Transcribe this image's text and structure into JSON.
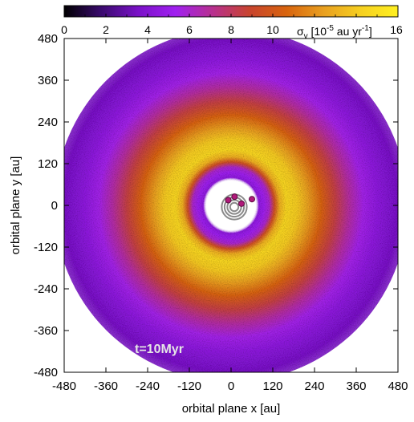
{
  "chart_data": {
    "type": "heatmap",
    "title": "",
    "xlabel": "orbital plane x [au]",
    "ylabel": "orbital plane y [au]",
    "xlim": [
      -480,
      480
    ],
    "ylim": [
      -480,
      480
    ],
    "x_ticks": [
      "-480",
      "-360",
      "-240",
      "-120",
      "0",
      "120",
      "240",
      "360",
      "480"
    ],
    "y_ticks": [
      "480",
      "360",
      "240",
      "120",
      "0",
      "-120",
      "-240",
      "-360",
      "-480"
    ],
    "colorbar": {
      "label_main": "σ",
      "label_sub": "v",
      "label_unit_pre": " [10",
      "label_exp1": "-5",
      "label_mid": " au yr",
      "label_exp2": "-1",
      "label_post": "]",
      "range": [
        0,
        16
      ],
      "ticks": [
        "0",
        "2",
        "4",
        "6",
        "8",
        "10",
        "12",
        "14",
        "16"
      ],
      "colors": [
        "#000000",
        "#3a0a6e",
        "#7a11c8",
        "#a020f0",
        "#b7308f",
        "#c8442e",
        "#d8640e",
        "#e9a020",
        "#f6d020",
        "#fff020"
      ]
    },
    "annotation": "t=10Myr",
    "background_color": "#ffffff",
    "profile": {
      "description_free": true,
      "radius_au": [
        0,
        70,
        80,
        95,
        110,
        125,
        140,
        160,
        190,
        220,
        260,
        300,
        340,
        380,
        420,
        460,
        480
      ],
      "sigma_v": [
        0,
        0,
        4.5,
        5.2,
        6.0,
        9.5,
        13.0,
        14.5,
        14.0,
        12.5,
        10.5,
        8.5,
        6.8,
        5.5,
        4.5,
        3.8,
        3.5
      ]
    },
    "planets": [
      {
        "x": 10,
        "y": 25
      },
      {
        "x": -8,
        "y": 15
      },
      {
        "x": 30,
        "y": 5
      },
      {
        "x": 60,
        "y": 18
      }
    ]
  }
}
